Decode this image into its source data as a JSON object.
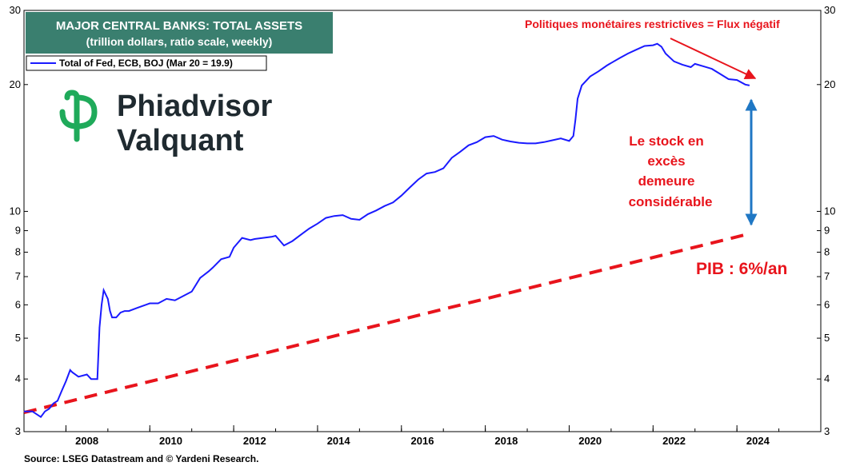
{
  "colors": {
    "title_bg": "#3a7f6f",
    "series": "#1a1aff",
    "gdp": "#e8141c",
    "arrow_blue": "#1f77c4",
    "logo_green": "#1faa5a"
  },
  "logo": {
    "line1": "Phiadvisor",
    "line2": "Valquant",
    "icon": "phi-logo-icon"
  },
  "chart_data": {
    "type": "line",
    "title": "MAJOR CENTRAL BANKS: TOTAL ASSETS",
    "subtitle": "(trillion dollars, ratio scale, weekly)",
    "scale": "log",
    "ylim": [
      3,
      30
    ],
    "yticks": [
      3,
      4,
      5,
      6,
      7,
      8,
      9,
      10,
      20,
      30
    ],
    "xlim": [
      2007.0,
      2026.0
    ],
    "xticks": [
      2008,
      2010,
      2012,
      2014,
      2016,
      2018,
      2020,
      2022,
      2024
    ],
    "legend": {
      "placement": "top-left"
    },
    "series": [
      {
        "name": "Total of Fed, ECB, BOJ (Mar 20 = 19.9)",
        "x": [
          2007.0,
          2007.2,
          2007.4,
          2007.5,
          2007.6,
          2007.7,
          2007.8,
          2007.9,
          2008.0,
          2008.1,
          2008.15,
          2008.3,
          2008.5,
          2008.6,
          2008.75,
          2008.8,
          2008.85,
          2008.9,
          2009.0,
          2009.05,
          2009.1,
          2009.2,
          2009.3,
          2009.4,
          2009.5,
          2009.7,
          2009.9,
          2010.0,
          2010.2,
          2010.4,
          2010.6,
          2010.8,
          2011.0,
          2011.2,
          2011.4,
          2011.5,
          2011.7,
          2011.9,
          2012.0,
          2012.2,
          2012.4,
          2012.5,
          2012.7,
          2012.9,
          2013.0,
          2013.2,
          2013.4,
          2013.6,
          2013.8,
          2014.0,
          2014.2,
          2014.4,
          2014.6,
          2014.8,
          2015.0,
          2015.2,
          2015.4,
          2015.6,
          2015.8,
          2016.0,
          2016.2,
          2016.4,
          2016.6,
          2016.8,
          2017.0,
          2017.2,
          2017.4,
          2017.6,
          2017.8,
          2018.0,
          2018.2,
          2018.4,
          2018.6,
          2018.8,
          2019.0,
          2019.2,
          2019.4,
          2019.6,
          2019.8,
          2020.0,
          2020.1,
          2020.15,
          2020.2,
          2020.3,
          2020.5,
          2020.7,
          2020.9,
          2021.0,
          2021.2,
          2021.4,
          2021.6,
          2021.8,
          2022.0,
          2022.1,
          2022.2,
          2022.3,
          2022.5,
          2022.7,
          2022.9,
          2023.0,
          2023.2,
          2023.4,
          2023.6,
          2023.8,
          2024.0,
          2024.2,
          2024.3
        ],
        "y": [
          3.35,
          3.35,
          3.25,
          3.35,
          3.4,
          3.5,
          3.55,
          3.75,
          3.95,
          4.2,
          4.15,
          4.05,
          4.1,
          4.0,
          4.0,
          5.3,
          6.0,
          6.5,
          6.2,
          5.8,
          5.6,
          5.6,
          5.75,
          5.8,
          5.8,
          5.9,
          6.0,
          6.05,
          6.05,
          6.2,
          6.15,
          6.3,
          6.45,
          6.95,
          7.2,
          7.35,
          7.7,
          7.8,
          8.2,
          8.65,
          8.55,
          8.6,
          8.65,
          8.7,
          8.75,
          8.3,
          8.5,
          8.8,
          9.1,
          9.35,
          9.65,
          9.75,
          9.8,
          9.6,
          9.55,
          9.85,
          10.05,
          10.3,
          10.5,
          10.9,
          11.4,
          11.9,
          12.3,
          12.4,
          12.65,
          13.4,
          13.85,
          14.35,
          14.6,
          15.0,
          15.1,
          14.8,
          14.65,
          14.55,
          14.5,
          14.5,
          14.6,
          14.75,
          14.9,
          14.7,
          15.1,
          16.5,
          18.5,
          19.9,
          20.9,
          21.5,
          22.2,
          22.5,
          23.1,
          23.7,
          24.2,
          24.7,
          24.8,
          25.0,
          24.6,
          23.7,
          22.7,
          22.3,
          22.0,
          22.4,
          22.1,
          21.8,
          21.2,
          20.6,
          20.5,
          20.0,
          19.9
        ]
      },
      {
        "name": "PIB : 6%/an",
        "style": "dashed",
        "x": [
          2007.0,
          2024.3
        ],
        "y": [
          3.33,
          8.85
        ]
      }
    ],
    "annotations": {
      "restrictive": "Politiques monétaires restrictives = Flux négatif",
      "stock_lines": [
        "Le stock en",
        "excès",
        "demeure",
        "considérable"
      ],
      "gdp_label": "PIB : 6%/an"
    },
    "source": "Source: LSEG Datastream and © Yardeni Research."
  }
}
